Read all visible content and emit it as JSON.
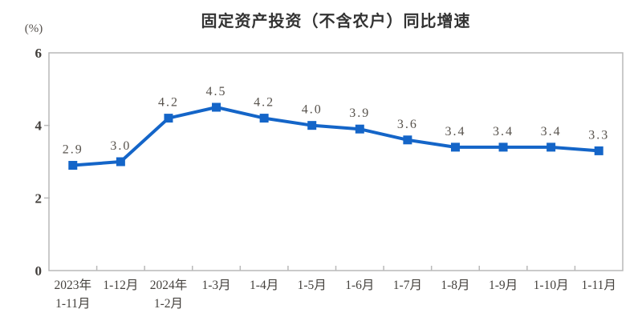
{
  "chart_data": {
    "type": "line",
    "title": "固定资产投资（不含农户）同比增速",
    "unit_label": "(%)",
    "categories": [
      [
        "2023年",
        "1-11月"
      ],
      [
        "1-12月"
      ],
      [
        "2024年",
        "1-2月"
      ],
      [
        "1-3月"
      ],
      [
        "1-4月"
      ],
      [
        "1-5月"
      ],
      [
        "1-6月"
      ],
      [
        "1-7月"
      ],
      [
        "1-8月"
      ],
      [
        "1-9月"
      ],
      [
        "1-10月"
      ],
      [
        "1-11月"
      ]
    ],
    "values": [
      2.9,
      3.0,
      4.2,
      4.5,
      4.2,
      4.0,
      3.9,
      3.6,
      3.4,
      3.4,
      3.4,
      3.3
    ],
    "data_labels": [
      "2.9",
      "3.0",
      "4.2",
      "4.5",
      "4.2",
      "4.0",
      "3.9",
      "3.6",
      "3.4",
      "3.4",
      "3.4",
      "3.3"
    ],
    "ylim": [
      0,
      6
    ],
    "yticks": [
      0,
      2,
      4,
      6
    ],
    "grid": false,
    "legend": "none",
    "line_color": "#1465c8",
    "marker": "square",
    "axis_color": "#b9b9b9",
    "tick_label_color": "#403d3a",
    "data_label_color": "#57524c",
    "x_label_color": "#45423e"
  }
}
